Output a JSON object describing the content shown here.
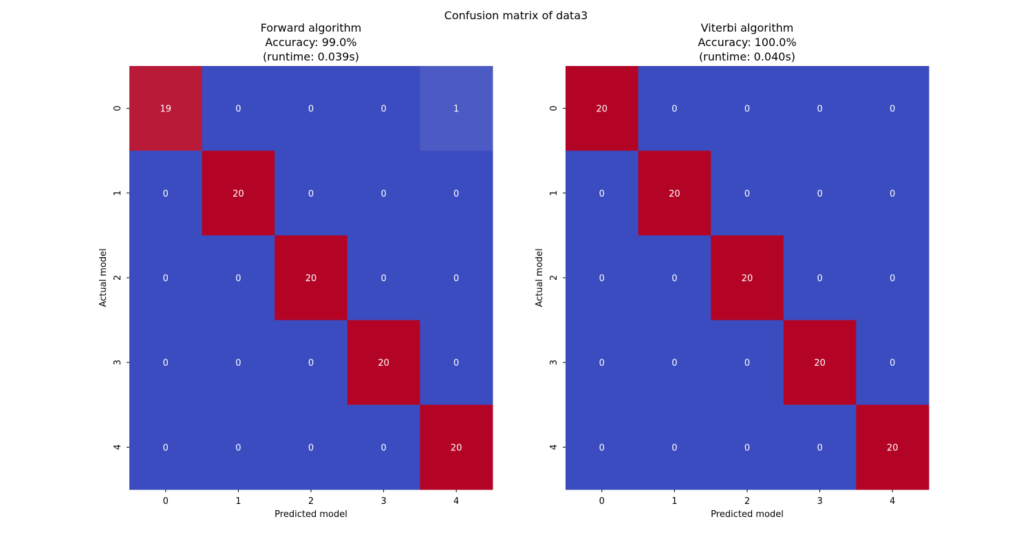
{
  "figure": {
    "suptitle": "Confusion matrix of data3"
  },
  "colors": {
    "cold": "#3b4cc0",
    "hot": "#b40426",
    "mid": "#dddddd",
    "text": "#ffffff"
  },
  "chart_data": [
    {
      "type": "heatmap",
      "title_lines": [
        "Forward algorithm",
        "Accuracy: 99.0%",
        "(runtime: 0.039s)"
      ],
      "xlabel": "Predicted model",
      "ylabel": "Actual model",
      "x_categories": [
        "0",
        "1",
        "2",
        "3",
        "4"
      ],
      "y_categories": [
        "0",
        "1",
        "2",
        "3",
        "4"
      ],
      "vmin": 0,
      "vmax": 20,
      "colormap": "coolwarm",
      "colorbar": false,
      "values": [
        [
          19,
          0,
          0,
          0,
          1
        ],
        [
          0,
          20,
          0,
          0,
          0
        ],
        [
          0,
          0,
          20,
          0,
          0
        ],
        [
          0,
          0,
          0,
          20,
          0
        ],
        [
          0,
          0,
          0,
          0,
          20
        ]
      ]
    },
    {
      "type": "heatmap",
      "title_lines": [
        "Viterbi algorithm",
        "Accuracy: 100.0%",
        "(runtime: 0.040s)"
      ],
      "xlabel": "Predicted model",
      "ylabel": "Actual model",
      "x_categories": [
        "0",
        "1",
        "2",
        "3",
        "4"
      ],
      "y_categories": [
        "0",
        "1",
        "2",
        "3",
        "4"
      ],
      "vmin": 0,
      "vmax": 20,
      "colormap": "coolwarm",
      "colorbar": false,
      "values": [
        [
          20,
          0,
          0,
          0,
          0
        ],
        [
          0,
          20,
          0,
          0,
          0
        ],
        [
          0,
          0,
          20,
          0,
          0
        ],
        [
          0,
          0,
          0,
          20,
          0
        ],
        [
          0,
          0,
          0,
          0,
          20
        ]
      ]
    }
  ]
}
